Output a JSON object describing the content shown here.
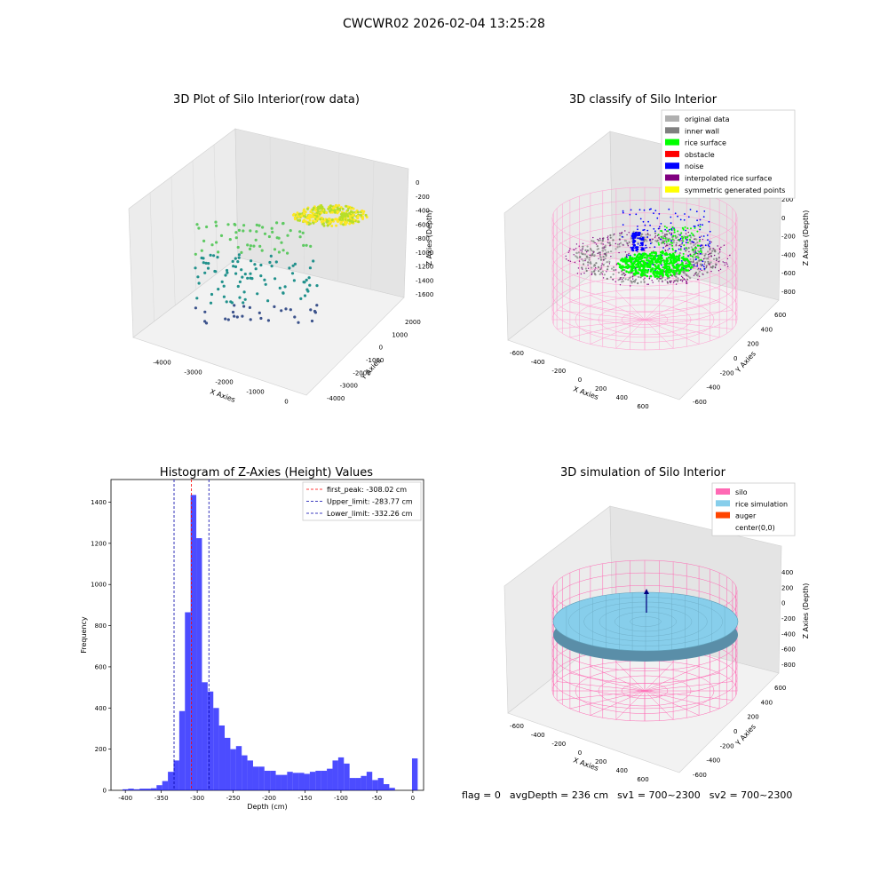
{
  "figure_title": "CWCWR02 2026-02-04 13:25:28",
  "status": {
    "flag": "flag = 0",
    "avg_depth": "avgDepth = 236 cm",
    "sv1": "sv1 = 700~2300",
    "sv2": "sv2 = 700~2300"
  },
  "chart_data": [
    {
      "type": "scatter",
      "title": "3D Plot of Silo Interior(row data)",
      "xlabel": "X Axies",
      "ylabel": "Y Axies",
      "zlabel": "Z Axies (Depth)",
      "x_ticks": [
        "-4000",
        "-3000",
        "-2000",
        "-1000",
        "0"
      ],
      "y_ticks": [
        "-4000",
        "-3000",
        "-2000",
        "-1000",
        "0",
        "1000",
        "2000"
      ],
      "z_ticks": [
        "0",
        "-200",
        "-400",
        "-600",
        "-800",
        "-1000",
        "-1200",
        "-1400",
        "-1600"
      ],
      "xlim": [
        -4500,
        500
      ],
      "ylim": [
        -4500,
        2500
      ],
      "zlim": [
        -1700,
        100
      ],
      "colormap": [
        "#3b528b",
        "#21918c",
        "#5ec962",
        "#fde725"
      ]
    },
    {
      "type": "scatter",
      "title": "3D classify of Silo Interior",
      "xlabel": "X Axies",
      "ylabel": "Y Axies",
      "zlabel": "Z Axies (Depth)",
      "x_ticks": [
        "-600",
        "-400",
        "-200",
        "0",
        "200",
        "400",
        "600"
      ],
      "y_ticks": [
        "-600",
        "-400",
        "-200",
        "0",
        "200",
        "400",
        "600"
      ],
      "z_ticks": [
        "200",
        "0",
        "-200",
        "-400",
        "-600",
        "-800"
      ],
      "legend_position": "top-right",
      "legend": [
        {
          "label": "original data",
          "color": "#b0b0b0"
        },
        {
          "label": "inner wall",
          "color": "#808080"
        },
        {
          "label": "rice surface",
          "color": "#00ff00"
        },
        {
          "label": "obstacle",
          "color": "#ff0000"
        },
        {
          "label": "noise",
          "color": "#0000ff"
        },
        {
          "label": "interpolated rice surface",
          "color": "#800080"
        },
        {
          "label": "symmetric generated points",
          "color": "#ffff00"
        }
      ]
    },
    {
      "type": "bar",
      "title": "Histogram of Z-Axies (Height) Values",
      "xlabel": "Depth (cm)",
      "ylabel": "Frequency",
      "xlim": [
        -420,
        15
      ],
      "ylim": [
        0,
        1510
      ],
      "x_ticks": [
        -400,
        -350,
        -300,
        -250,
        -200,
        -150,
        -100,
        -50,
        0
      ],
      "y_ticks": [
        0,
        200,
        400,
        600,
        800,
        1000,
        1200,
        1400
      ],
      "bar_color": "#0000ff",
      "bin_width": 7.9,
      "bin_starts": [
        -404,
        -396.1,
        -388.2,
        -380.3,
        -372.4,
        -364.5,
        -356.6,
        -348.7,
        -340.8,
        -332.9,
        -325,
        -317.1,
        -309.2,
        -301.3,
        -293.4,
        -285.5,
        -277.6,
        -269.7,
        -261.8,
        -253.9,
        -246,
        -238.1,
        -230.2,
        -222.3,
        -214.4,
        -206.5,
        -198.6,
        -190.7,
        -182.8,
        -174.9,
        -167,
        -159.1,
        -151.2,
        -143.3,
        -135.4,
        -127.5,
        -119.6,
        -111.7,
        -103.8,
        -95.9,
        -88,
        -80.1,
        -72.2,
        -64.3,
        -56.4,
        -48.5,
        -40.6,
        -32.7,
        -24.8,
        -16.9,
        -9,
        -1.1
      ],
      "values": [
        5,
        8,
        5,
        8,
        8,
        10,
        25,
        45,
        90,
        145,
        385,
        865,
        1435,
        1225,
        525,
        480,
        400,
        315,
        255,
        200,
        215,
        170,
        145,
        115,
        115,
        95,
        95,
        75,
        75,
        90,
        85,
        85,
        80,
        90,
        95,
        95,
        105,
        145,
        160,
        130,
        60,
        60,
        70,
        90,
        50,
        60,
        30,
        12,
        0,
        0,
        0,
        155
      ],
      "reference_lines": [
        {
          "label": "first_peak: -308.02 cm",
          "x": -308.02,
          "color": "#ff0000"
        },
        {
          "label": "Upper_limit: -283.77 cm",
          "x": -283.77,
          "color": "#0000aa"
        },
        {
          "label": "Lower_limit: -332.26 cm",
          "x": -332.26,
          "color": "#0000aa"
        }
      ],
      "legend_position": "top-right"
    },
    {
      "type": "surface",
      "title": "3D simulation of Silo Interior",
      "xlabel": "X Axies",
      "ylabel": "Y Axies",
      "zlabel": "Z Axies (Depth)",
      "x_ticks": [
        "-600",
        "-400",
        "-200",
        "0",
        "200",
        "400",
        "600"
      ],
      "y_ticks": [
        "-600",
        "-400",
        "-200",
        "0",
        "200",
        "400",
        "600"
      ],
      "z_ticks": [
        "400",
        "200",
        "0",
        "-200",
        "-400",
        "-600",
        "-800"
      ],
      "legend_position": "top-right",
      "legend": [
        {
          "label": "silo",
          "color": "#ff69b4"
        },
        {
          "label": "rice simulation",
          "color": "#87ceeb"
        },
        {
          "label": "auger",
          "color": "#ff4500"
        },
        {
          "label": "center(0,0)",
          "color": ""
        }
      ]
    }
  ]
}
